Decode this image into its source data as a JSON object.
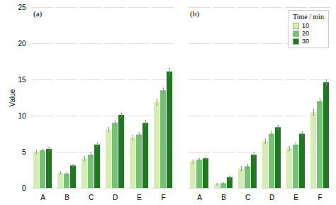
{
  "chart_data": [
    {
      "type": "bar",
      "annotation": "(a)",
      "ylabel": "Value",
      "categories": [
        "A",
        "B",
        "C",
        "D",
        "E",
        "F"
      ],
      "series": [
        {
          "name": "10",
          "color": "#d5edb0",
          "values": [
            5.0,
            2.1,
            4.1,
            8.1,
            7.0,
            11.9
          ],
          "errors": [
            0.25,
            0.2,
            0.3,
            0.3,
            0.3,
            0.35
          ]
        },
        {
          "name": "20",
          "color": "#72c472",
          "values": [
            5.2,
            2.0,
            4.6,
            9.0,
            7.4,
            13.5
          ],
          "errors": [
            0.2,
            0.2,
            0.3,
            0.3,
            0.3,
            0.35
          ]
        },
        {
          "name": "30",
          "color": "#1e7a1e",
          "values": [
            5.4,
            3.1,
            6.0,
            10.1,
            9.0,
            16.1
          ],
          "errors": [
            0.25,
            0.2,
            0.3,
            0.3,
            0.35,
            0.5
          ]
        }
      ],
      "ylim": [
        0,
        25
      ],
      "yticks": [
        0,
        5,
        10,
        15,
        20,
        25
      ],
      "grid": true
    },
    {
      "type": "bar",
      "annotation": "(b)",
      "categories": [
        "A",
        "B",
        "C",
        "D",
        "E",
        "F"
      ],
      "series": [
        {
          "name": "10",
          "color": "#d5edb0",
          "values": [
            3.7,
            0.55,
            2.7,
            6.5,
            5.5,
            10.5
          ],
          "errors": [
            0.2,
            0.1,
            0.3,
            0.3,
            0.3,
            0.4
          ]
        },
        {
          "name": "20",
          "color": "#72c472",
          "values": [
            3.9,
            0.65,
            3.0,
            7.5,
            6.0,
            12.0
          ],
          "errors": [
            0.2,
            0.1,
            0.3,
            0.3,
            0.3,
            0.4
          ]
        },
        {
          "name": "30",
          "color": "#1e7a1e",
          "values": [
            4.1,
            1.5,
            4.6,
            8.4,
            7.5,
            14.6
          ],
          "errors": [
            0.2,
            0.2,
            0.3,
            0.3,
            0.3,
            0.4
          ]
        }
      ],
      "ylim": [
        0,
        25
      ],
      "yticks": [
        0,
        5,
        10,
        15,
        20,
        25
      ],
      "grid": true,
      "tick_labels": "x",
      "legend": "upper right",
      "legend_title": "Time / min"
    }
  ]
}
